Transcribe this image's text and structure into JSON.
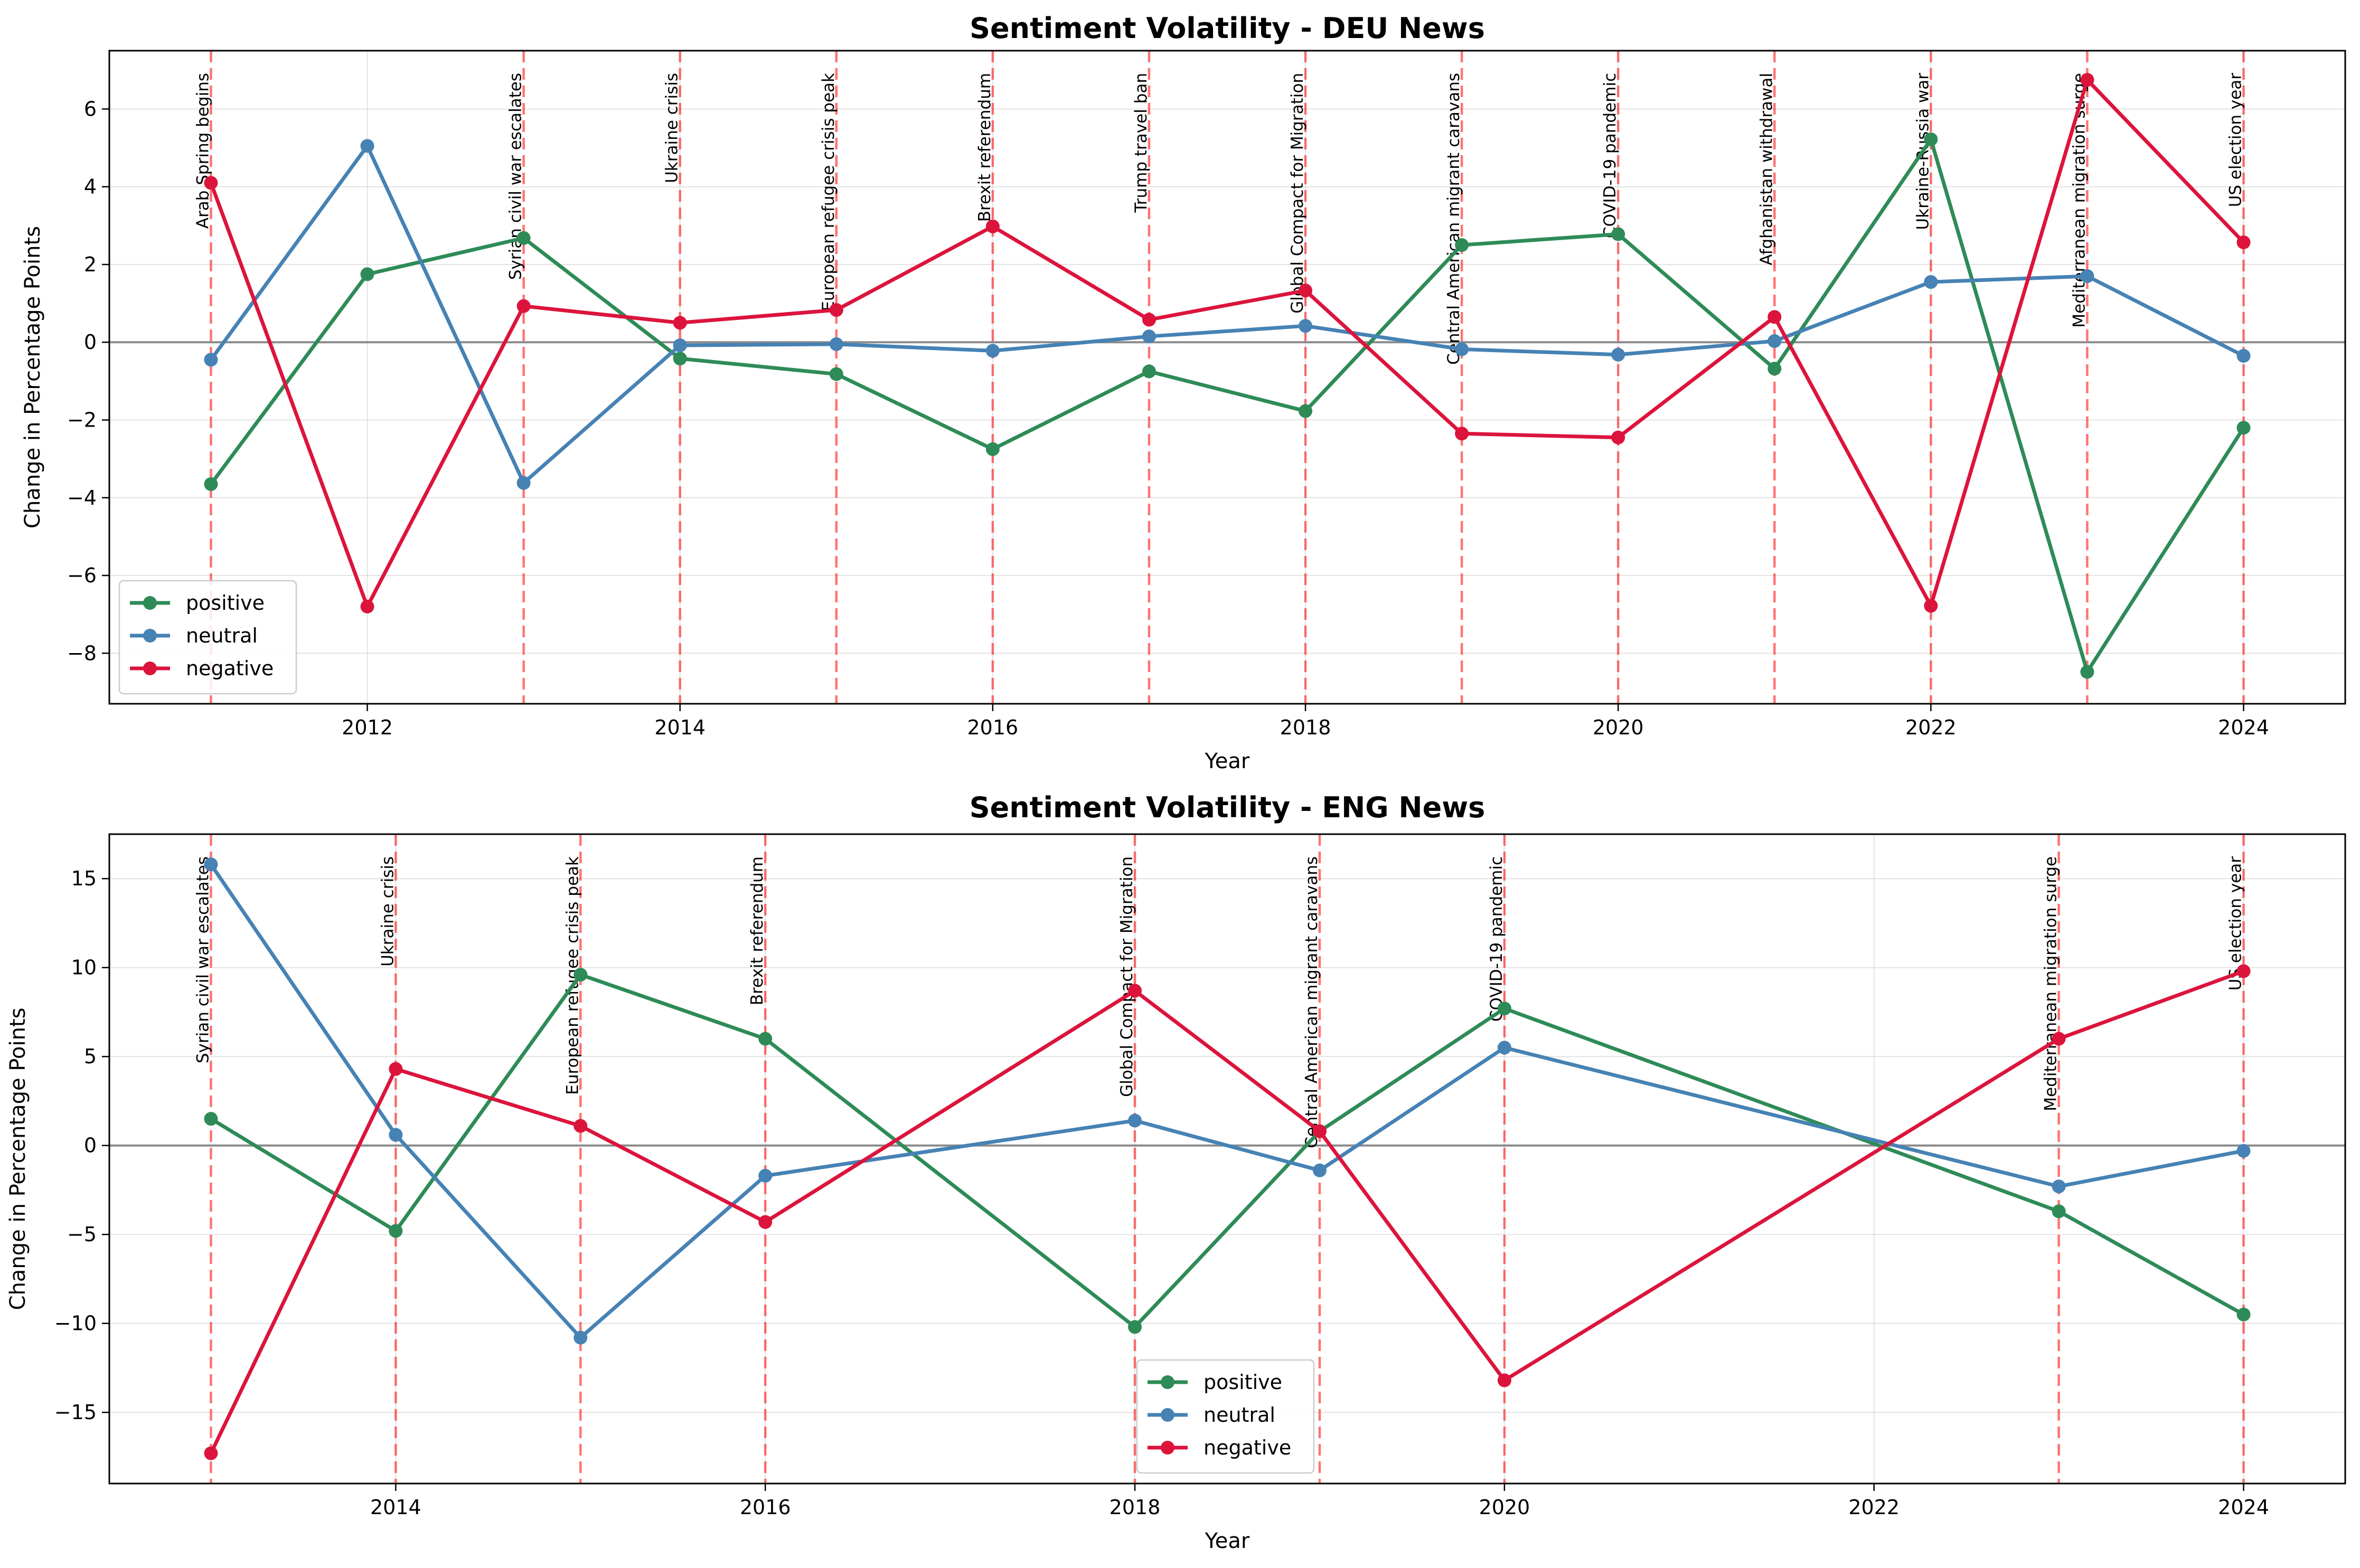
{
  "chart_data": [
    {
      "type": "line",
      "title": "Sentiment Volatility - DEU News",
      "xlabel": "Year",
      "ylabel": "Change in Percentage Points",
      "xlim": [
        2010.35,
        2024.65
      ],
      "ylim": [
        -9.3,
        7.5
      ],
      "xticks": [
        2012,
        2014,
        2016,
        2018,
        2020,
        2022,
        2024
      ],
      "yticks": [
        -8,
        -6,
        -4,
        -2,
        0,
        2,
        4,
        6
      ],
      "grid": true,
      "legend": "lower-left",
      "x": [
        2011,
        2012,
        2013,
        2014,
        2015,
        2016,
        2017,
        2018,
        2019,
        2020,
        2021,
        2022,
        2023,
        2024
      ],
      "series": [
        {
          "name": "positive",
          "color": "#2e8b57",
          "values": [
            -3.65,
            1.75,
            2.68,
            -0.42,
            -0.82,
            -2.75,
            -0.75,
            -1.77,
            2.5,
            2.78,
            -0.68,
            5.22,
            -8.48,
            -2.2
          ]
        },
        {
          "name": "neutral",
          "color": "#4682b4",
          "values": [
            -0.45,
            5.05,
            -3.62,
            -0.08,
            -0.05,
            -0.22,
            0.15,
            0.42,
            -0.18,
            -0.32,
            0.03,
            1.55,
            1.7,
            -0.35
          ]
        },
        {
          "name": "negative",
          "color": "#dc143c",
          "values": [
            4.1,
            -6.8,
            0.93,
            0.5,
            0.83,
            2.98,
            0.58,
            1.33,
            -2.35,
            -2.45,
            0.65,
            -6.78,
            6.75,
            2.57
          ]
        }
      ],
      "events": [
        {
          "year": 2011,
          "label": "Arab Spring begins"
        },
        {
          "year": 2013,
          "label": "Syrian civil war escalates"
        },
        {
          "year": 2014,
          "label": "Ukraine crisis"
        },
        {
          "year": 2015,
          "label": "European refugee crisis peak"
        },
        {
          "year": 2016,
          "label": "Brexit referendum"
        },
        {
          "year": 2017,
          "label": "Trump travel ban"
        },
        {
          "year": 2018,
          "label": "Global Compact for Migration"
        },
        {
          "year": 2019,
          "label": "Central American migrant caravans"
        },
        {
          "year": 2020,
          "label": "COVID-19 pandemic"
        },
        {
          "year": 2021,
          "label": "Afghanistan withdrawal"
        },
        {
          "year": 2022,
          "label": "Ukraine-Russia war"
        },
        {
          "year": 2023,
          "label": "Mediterranean migration surge"
        },
        {
          "year": 2024,
          "label": "US election year"
        }
      ]
    },
    {
      "type": "line",
      "title": "Sentiment Volatility - ENG News",
      "xlabel": "Year",
      "ylabel": "Change in Percentage Points",
      "xlim": [
        2012.45,
        2024.55
      ],
      "ylim": [
        -19.0,
        17.5
      ],
      "xticks": [
        2014,
        2016,
        2018,
        2020,
        2022,
        2024
      ],
      "yticks": [
        -15,
        -10,
        -5,
        0,
        5,
        10,
        15
      ],
      "grid": true,
      "legend": "lower-center",
      "x": [
        2013,
        2014,
        2015,
        2016,
        2018,
        2019,
        2020,
        2023,
        2024
      ],
      "series": [
        {
          "name": "positive",
          "color": "#2e8b57",
          "values": [
            1.5,
            -4.8,
            9.6,
            6.0,
            -10.2,
            0.8,
            7.7,
            -3.7,
            -9.5
          ]
        },
        {
          "name": "neutral",
          "color": "#4682b4",
          "values": [
            15.8,
            0.6,
            -10.8,
            -1.7,
            1.4,
            -1.4,
            5.5,
            -2.3,
            -0.3
          ]
        },
        {
          "name": "negative",
          "color": "#dc143c",
          "values": [
            -17.3,
            4.3,
            1.1,
            -4.3,
            8.7,
            0.8,
            -13.2,
            6.0,
            9.8
          ]
        }
      ],
      "events": [
        {
          "year": 2013,
          "label": "Syrian civil war escalates"
        },
        {
          "year": 2014,
          "label": "Ukraine crisis"
        },
        {
          "year": 2015,
          "label": "European refugee crisis peak"
        },
        {
          "year": 2016,
          "label": "Brexit referendum"
        },
        {
          "year": 2018,
          "label": "Global Compact for Migration"
        },
        {
          "year": 2019,
          "label": "Central American migrant caravans"
        },
        {
          "year": 2020,
          "label": "COVID-19 pandemic"
        },
        {
          "year": 2023,
          "label": "Mediterranean migration surge"
        },
        {
          "year": 2024,
          "label": "US election year"
        }
      ]
    }
  ]
}
